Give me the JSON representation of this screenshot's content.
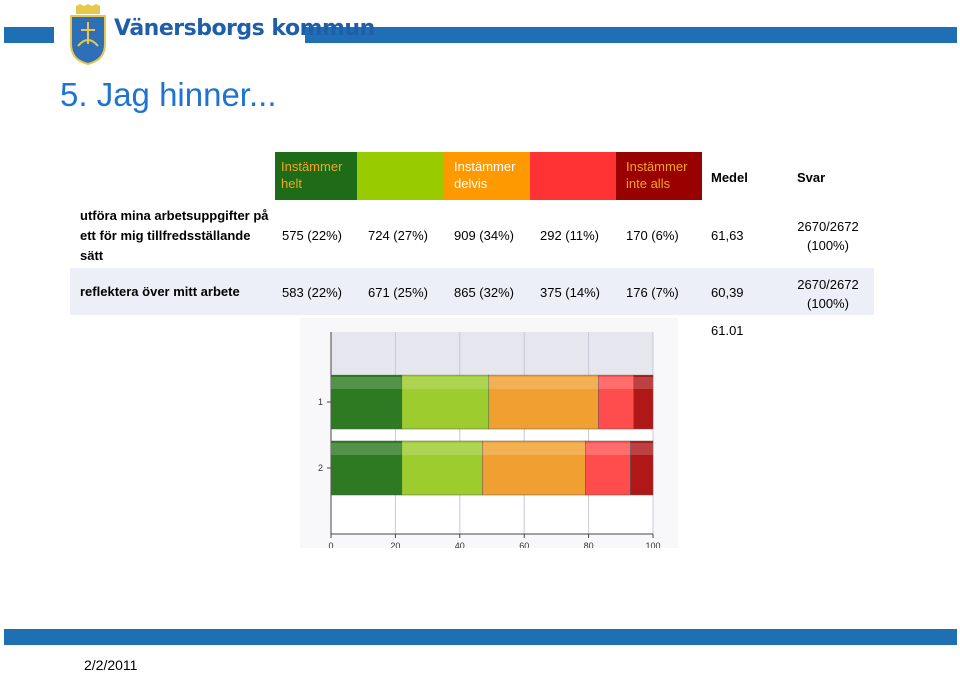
{
  "header": {
    "org_name": "Vänersborgs kommun",
    "colors": {
      "band": "#1f6fb4",
      "title": "#1f73d1"
    }
  },
  "slide": {
    "title": "5. Jag hinner..."
  },
  "table": {
    "col_headers": [
      {
        "label": "Instämmer helt",
        "color": "#1e6b18",
        "text_color": "#f5a623"
      },
      {
        "label": "",
        "color": "#99cc00",
        "text_color": "#000000"
      },
      {
        "label": "Instämmer delvis",
        "color": "#ff9900",
        "text_color": "#ffffff"
      },
      {
        "label": "",
        "color": "#ff3333",
        "text_color": "#000000"
      },
      {
        "label": "Instämmer inte alls",
        "color": "#990000",
        "text_color": "#f5a623"
      }
    ],
    "medel_header": "Medel",
    "svar_header": "Svar",
    "rows": [
      {
        "label": "utföra mina arbetsuppgifter på ett för mig tillfredsställande sätt",
        "cells": [
          "575 (22%)",
          "724 (27%)",
          "909 (34%)",
          "292 (11%)",
          "170 (6%)"
        ],
        "medel": "61,63",
        "svar_count": "2670/2672",
        "svar_pct": "(100%)"
      },
      {
        "label": "reflektera över mitt arbete",
        "cells": [
          "583 (22%)",
          "671 (25%)",
          "865 (32%)",
          "375 (14%)",
          "176 (7%)"
        ],
        "medel": "60,39",
        "svar_count": "2670/2672",
        "svar_pct": "(100%)"
      }
    ],
    "overall_medel": "61.01"
  },
  "chart_data": {
    "type": "bar",
    "orientation": "horizontal",
    "stacked": true,
    "categories": [
      "1",
      "2"
    ],
    "series": [
      {
        "name": "",
        "color": "#2d7a22",
        "values": [
          22,
          22
        ]
      },
      {
        "name": "",
        "color": "#9ccc2e",
        "values": [
          27,
          25
        ]
      },
      {
        "name": "",
        "color": "#f0a030",
        "values": [
          34,
          32
        ]
      },
      {
        "name": "",
        "color": "#ff4d4d",
        "values": [
          11,
          14
        ]
      },
      {
        "name": "",
        "color": "#b01818",
        "values": [
          6,
          7
        ]
      }
    ],
    "xlim": [
      0,
      100
    ],
    "xticks": [
      "0",
      "20",
      "40",
      "60",
      "80",
      "100"
    ],
    "grid": true
  },
  "footer": {
    "date": "2/2/2011"
  }
}
